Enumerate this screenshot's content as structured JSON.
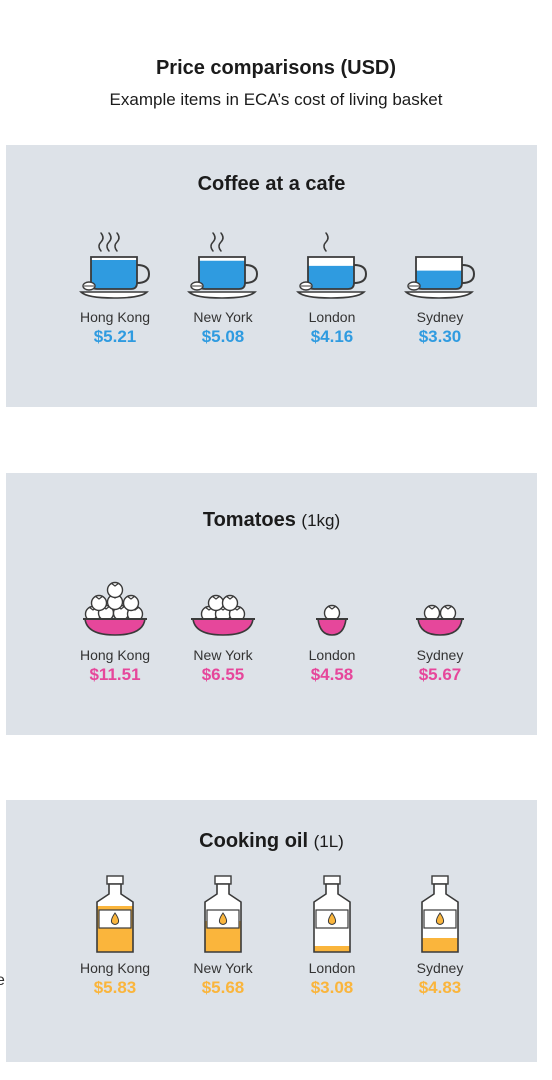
{
  "header": {
    "title": "Price comparisons (USD)",
    "subtitle": "Example items in ECA’s cost of living basket"
  },
  "colors": {
    "coffee": "#2f9be0",
    "tomato": "#e6479b",
    "oil": "#fab53c",
    "panel": "#dde2e8"
  },
  "edge_text": "e",
  "chart_data": [
    {
      "type": "table",
      "title": "Coffee at a cafe",
      "unit": "",
      "icon": "coffee-cup-icon",
      "categories": [
        "Hong Kong",
        "New York",
        "London",
        "Sydney"
      ],
      "values": [
        5.21,
        5.08,
        4.16,
        3.3
      ],
      "labels": [
        "$5.21",
        "$5.08",
        "$4.16",
        "$3.30"
      ]
    },
    {
      "type": "table",
      "title": "Tomatoes",
      "unit": "(1kg)",
      "icon": "tomato-bowl-icon",
      "categories": [
        "Hong Kong",
        "New York",
        "London",
        "Sydney"
      ],
      "values": [
        11.51,
        6.55,
        4.58,
        5.67
      ],
      "labels": [
        "$11.51",
        "$6.55",
        "$4.58",
        "$5.67"
      ]
    },
    {
      "type": "table",
      "title": "Cooking oil",
      "unit": "(1L)",
      "icon": "oil-bottle-icon",
      "categories": [
        "Hong Kong",
        "New York",
        "London",
        "Sydney"
      ],
      "values": [
        5.83,
        5.68,
        3.08,
        4.83
      ],
      "labels": [
        "$5.83",
        "$5.68",
        "$3.08",
        "$4.83"
      ]
    }
  ]
}
